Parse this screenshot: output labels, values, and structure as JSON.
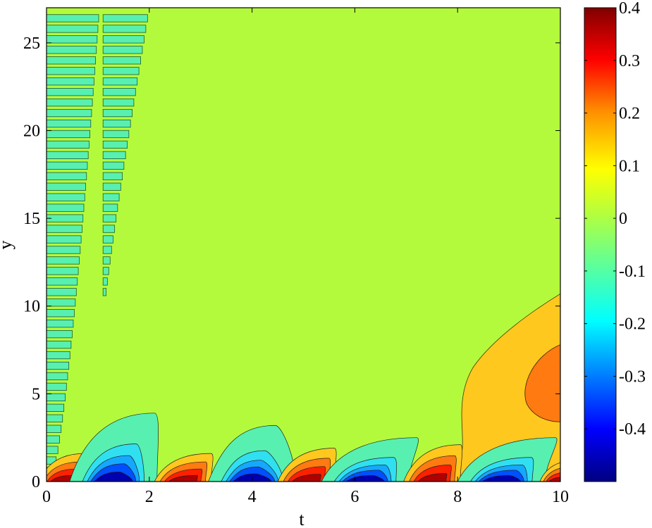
{
  "chart_data": {
    "type": "heatmap",
    "subtype": "filled-contour",
    "title": "",
    "xlabel": "t",
    "ylabel": "y",
    "xlim": [
      0,
      10
    ],
    "ylim": [
      0,
      27
    ],
    "xticks": [
      0,
      2,
      4,
      6,
      8,
      10
    ],
    "yticks": [
      0,
      5,
      10,
      15,
      20,
      25
    ],
    "colorbar": {
      "colormap": "jet",
      "range": [
        -0.5,
        0.4
      ],
      "ticks": [
        "0.4",
        "0.3",
        "0.2",
        "0.1",
        "0",
        "-0.1",
        "-0.2",
        "-0.3",
        "-0.4"
      ],
      "tick_values": [
        0.4,
        0.3,
        0.2,
        0.1,
        0,
        -0.1,
        -0.2,
        -0.3,
        -0.4
      ]
    },
    "background_value": 0,
    "lobe_periodicity_t": 1.9,
    "features": [
      {
        "t_start": 0,
        "t_end": 1.1,
        "y_range": [
          0,
          27
        ],
        "value": -0.1,
        "description": "stacked negative bands near t=0"
      },
      {
        "t_start": 1.1,
        "t_end": 2.0,
        "y_range": [
          10.5,
          27
        ],
        "value": -0.1,
        "description": "shorter stacked negative bands"
      },
      {
        "t_center": 0.3,
        "y_peak": 0.5,
        "min": 0.4,
        "description": "positive lobe"
      },
      {
        "t_center": 1.3,
        "y_peak": 0.5,
        "min": -0.5,
        "description": "negative lobe, tail to y≈4"
      },
      {
        "t_center": 2.6,
        "y_peak": 0.5,
        "max": 0.4,
        "description": "positive lobe"
      },
      {
        "t_center": 4.0,
        "y_peak": 0.5,
        "min": -0.5,
        "description": "negative lobe, tail to y≈3"
      },
      {
        "t_center": 5.0,
        "y_peak": 0.5,
        "max": 0.4,
        "description": "positive lobe"
      },
      {
        "t_center": 6.2,
        "y_peak": 0.5,
        "min": -0.5,
        "description": "negative lobe, tail to y≈2.5"
      },
      {
        "t_center": 7.5,
        "y_peak": 0.5,
        "max": 0.4,
        "description": "positive lobe"
      },
      {
        "t_center": 8.8,
        "y_peak": 0.5,
        "min": -0.5,
        "description": "negative lobe, tail to y≈2.5"
      },
      {
        "t_center": 9.9,
        "y_peak": 0.5,
        "max": 0.4,
        "description": "positive lobe at edge"
      },
      {
        "t_start": 8.0,
        "t_end": 10,
        "y_range": [
          1.5,
          10.7
        ],
        "value": 0.1,
        "description": "growing positive plume"
      },
      {
        "t_start": 9.3,
        "t_end": 10,
        "y_range": [
          3.5,
          7.8
        ],
        "value": 0.2,
        "description": "plume core"
      }
    ]
  }
}
